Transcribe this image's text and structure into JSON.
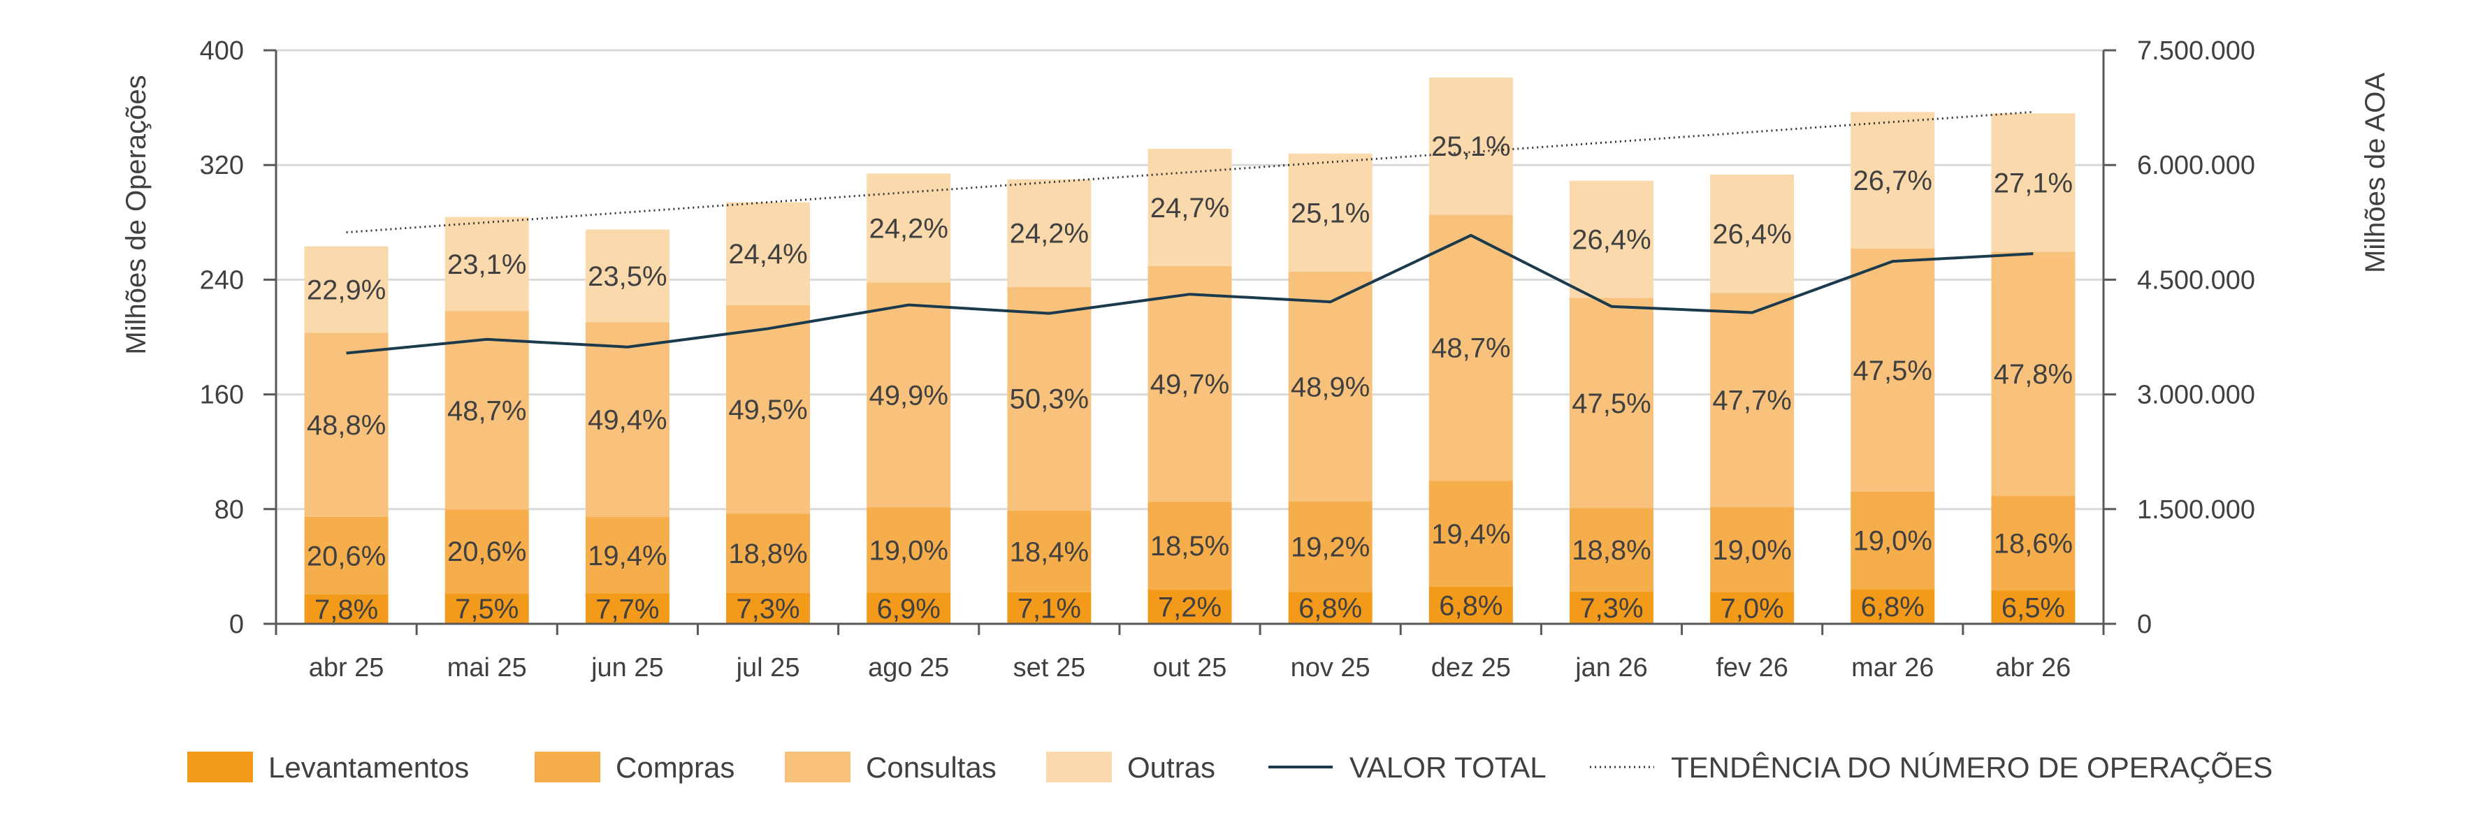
{
  "chart_data": {
    "type": "bar",
    "stacked": true,
    "categories": [
      "abr 25",
      "mai 25",
      "jun 25",
      "jul 25",
      "ago 25",
      "set 25",
      "out 25",
      "nov 25",
      "dez 25",
      "jan 26",
      "fev 26",
      "mar 26",
      "abr 26"
    ],
    "totals": [
      263,
      284,
      275,
      294,
      314,
      310,
      331,
      328,
      381,
      309,
      313,
      357,
      356
    ],
    "series": [
      {
        "name": "Levantamentos",
        "color": "#F39A1B",
        "shares": [
          7.8,
          7.5,
          7.7,
          7.3,
          6.9,
          7.1,
          7.2,
          6.8,
          6.8,
          7.3,
          7.0,
          6.8,
          6.5
        ],
        "labels": [
          "7,8%",
          "7,5%",
          "7,7%",
          "7,3%",
          "6,9%",
          "7,1%",
          "7,2%",
          "6,8%",
          "6,8%",
          "7,3%",
          "7,0%",
          "6,8%",
          "6,5%"
        ]
      },
      {
        "name": "Compras",
        "color": "#F6AD4B",
        "shares": [
          20.6,
          20.6,
          19.4,
          18.8,
          19.0,
          18.4,
          18.5,
          19.2,
          19.4,
          18.8,
          19.0,
          19.0,
          18.6
        ],
        "labels": [
          "20,6%",
          "20,6%",
          "19,4%",
          "18,8%",
          "19,0%",
          "18,4%",
          "18,5%",
          "19,2%",
          "19,4%",
          "18,8%",
          "19,0%",
          "19,0%",
          "18,6%"
        ]
      },
      {
        "name": "Consultas",
        "color": "#F8C27C",
        "shares": [
          48.8,
          48.7,
          49.4,
          49.5,
          49.9,
          50.3,
          49.7,
          48.9,
          48.7,
          47.5,
          47.7,
          47.5,
          47.8
        ],
        "labels": [
          "48,8%",
          "48,7%",
          "49,4%",
          "49,5%",
          "49,9%",
          "50,3%",
          "49,7%",
          "48,9%",
          "48,7%",
          "47,5%",
          "47,7%",
          "47,5%",
          "47,8%"
        ]
      },
      {
        "name": "Outras",
        "color": "#FAD9AC",
        "shares": [
          22.9,
          23.1,
          23.5,
          24.4,
          24.2,
          24.2,
          24.7,
          25.1,
          25.1,
          26.4,
          26.4,
          26.7,
          27.1
        ],
        "labels": [
          "22,9%",
          "23,1%",
          "23,5%",
          "24,4%",
          "24,2%",
          "24,2%",
          "24,7%",
          "25,1%",
          "25,1%",
          "26,4%",
          "26,4%",
          "26,7%",
          "27,1%"
        ]
      }
    ],
    "line_series": {
      "name": "VALOR TOTAL",
      "axis": "right",
      "color": "#1B3A4B",
      "values": [
        3540000,
        3720000,
        3620000,
        3860000,
        4170000,
        4060000,
        4310000,
        4210000,
        5080000,
        4150000,
        4070000,
        4740000,
        4840000
      ]
    },
    "trend": {
      "name": "TENDÊNCIA DO NÚMERO DE OPERAÇÕES",
      "start": 273,
      "end": 357
    },
    "y_left": {
      "label": "Milhões de Operações",
      "min": 0,
      "max": 400,
      "ticks": [
        0,
        80,
        160,
        240,
        320,
        400
      ],
      "tick_labels": [
        "0",
        "80",
        "160",
        "240",
        "320",
        "400"
      ]
    },
    "y_right": {
      "label": "Milhões de AOA",
      "min": 0,
      "max": 7500000,
      "ticks": [
        0,
        1500000,
        3000000,
        4500000,
        6000000,
        7500000
      ],
      "tick_labels": [
        "0",
        "1.500.000",
        "3.000.000",
        "4.500.000",
        "6.000.000",
        "7.500.000"
      ]
    },
    "grid": true,
    "legend_position": "bottom"
  }
}
